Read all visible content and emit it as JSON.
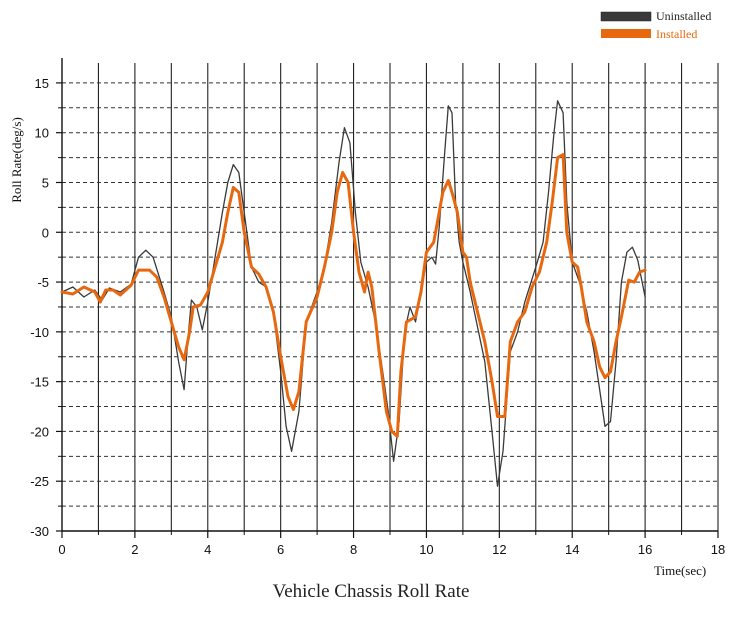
{
  "chart_data": {
    "type": "line",
    "title": "Vehicle Chassis Roll Rate",
    "xlabel": "Time(sec)",
    "ylabel": "Roll Rate(deg/s)",
    "xlim": [
      0,
      18
    ],
    "ylim": [
      -30,
      17
    ],
    "x_ticks": [
      0,
      2,
      4,
      6,
      8,
      10,
      12,
      14,
      16,
      18
    ],
    "y_ticks": [
      -30,
      -25,
      -20,
      -15,
      -10,
      -5,
      0,
      5,
      10,
      15
    ],
    "grid": true,
    "legend_position": "top-right",
    "series": [
      {
        "name": "Uninstalled",
        "color": "#3a3a3a",
        "points": [
          [
            0,
            -6
          ],
          [
            0.3,
            -5.5
          ],
          [
            0.6,
            -6.5
          ],
          [
            0.9,
            -5.8
          ],
          [
            1.1,
            -6.8
          ],
          [
            1.3,
            -5.6
          ],
          [
            1.6,
            -6
          ],
          [
            1.9,
            -5.2
          ],
          [
            2.1,
            -2.5
          ],
          [
            2.3,
            -1.8
          ],
          [
            2.5,
            -2.5
          ],
          [
            2.8,
            -6
          ],
          [
            3.0,
            -8.5
          ],
          [
            3.2,
            -13
          ],
          [
            3.35,
            -15.8
          ],
          [
            3.45,
            -11
          ],
          [
            3.55,
            -6.8
          ],
          [
            3.7,
            -7.5
          ],
          [
            3.85,
            -9.8
          ],
          [
            4.0,
            -7
          ],
          [
            4.2,
            -2.5
          ],
          [
            4.4,
            2
          ],
          [
            4.55,
            5
          ],
          [
            4.7,
            6.8
          ],
          [
            4.85,
            6
          ],
          [
            5.0,
            2
          ],
          [
            5.2,
            -3.5
          ],
          [
            5.4,
            -5
          ],
          [
            5.6,
            -5.5
          ],
          [
            5.8,
            -8
          ],
          [
            6.0,
            -14
          ],
          [
            6.15,
            -19.5
          ],
          [
            6.3,
            -22
          ],
          [
            6.5,
            -18
          ],
          [
            6.7,
            -9
          ],
          [
            7.0,
            -6
          ],
          [
            7.2,
            -3.5
          ],
          [
            7.4,
            1
          ],
          [
            7.6,
            7
          ],
          [
            7.75,
            10.5
          ],
          [
            7.9,
            9
          ],
          [
            8.05,
            2
          ],
          [
            8.2,
            -3
          ],
          [
            8.4,
            -5.5
          ],
          [
            8.6,
            -9
          ],
          [
            8.8,
            -14
          ],
          [
            8.95,
            -18
          ],
          [
            9.1,
            -23
          ],
          [
            9.25,
            -19
          ],
          [
            9.4,
            -10
          ],
          [
            9.55,
            -7.5
          ],
          [
            9.7,
            -9
          ],
          [
            9.85,
            -6
          ],
          [
            10.0,
            -3
          ],
          [
            10.15,
            -2.5
          ],
          [
            10.25,
            -3.2
          ],
          [
            10.35,
            0.5
          ],
          [
            10.5,
            8
          ],
          [
            10.6,
            12.7
          ],
          [
            10.7,
            12
          ],
          [
            10.8,
            3
          ],
          [
            10.9,
            -1
          ],
          [
            11.0,
            -3
          ],
          [
            11.2,
            -6
          ],
          [
            11.4,
            -9.5
          ],
          [
            11.6,
            -13
          ],
          [
            11.8,
            -20
          ],
          [
            11.95,
            -25.5
          ],
          [
            12.1,
            -22
          ],
          [
            12.3,
            -12
          ],
          [
            12.5,
            -10
          ],
          [
            12.7,
            -7
          ],
          [
            13.0,
            -3.5
          ],
          [
            13.2,
            -1
          ],
          [
            13.35,
            4
          ],
          [
            13.5,
            10
          ],
          [
            13.6,
            13.2
          ],
          [
            13.75,
            12
          ],
          [
            13.85,
            3
          ],
          [
            14.0,
            -3
          ],
          [
            14.2,
            -5
          ],
          [
            14.4,
            -8
          ],
          [
            14.6,
            -12
          ],
          [
            14.8,
            -17
          ],
          [
            14.9,
            -19.5
          ],
          [
            15.05,
            -19
          ],
          [
            15.2,
            -13
          ],
          [
            15.35,
            -5
          ],
          [
            15.5,
            -2
          ],
          [
            15.65,
            -1.5
          ],
          [
            15.8,
            -2.8
          ],
          [
            16.0,
            -6.5
          ]
        ]
      },
      {
        "name": "Installed",
        "color": "#e8680f",
        "points": [
          [
            0,
            -6
          ],
          [
            0.3,
            -6.2
          ],
          [
            0.6,
            -5.5
          ],
          [
            0.9,
            -6
          ],
          [
            1.05,
            -7
          ],
          [
            1.2,
            -5.8
          ],
          [
            1.4,
            -5.8
          ],
          [
            1.6,
            -6.3
          ],
          [
            1.9,
            -5.3
          ],
          [
            2.1,
            -3.8
          ],
          [
            2.4,
            -3.8
          ],
          [
            2.6,
            -4.5
          ],
          [
            2.8,
            -6.5
          ],
          [
            3.0,
            -9
          ],
          [
            3.2,
            -11.5
          ],
          [
            3.35,
            -12.8
          ],
          [
            3.5,
            -10
          ],
          [
            3.6,
            -7.5
          ],
          [
            3.8,
            -7.3
          ],
          [
            4.0,
            -6
          ],
          [
            4.2,
            -3.5
          ],
          [
            4.4,
            -1
          ],
          [
            4.55,
            2
          ],
          [
            4.7,
            4.5
          ],
          [
            4.85,
            4
          ],
          [
            5.0,
            0
          ],
          [
            5.2,
            -3.5
          ],
          [
            5.4,
            -4.2
          ],
          [
            5.6,
            -5.5
          ],
          [
            5.8,
            -8
          ],
          [
            6.0,
            -12.5
          ],
          [
            6.2,
            -16.5
          ],
          [
            6.35,
            -17.8
          ],
          [
            6.5,
            -16
          ],
          [
            6.7,
            -9
          ],
          [
            7.0,
            -6.5
          ],
          [
            7.2,
            -3.5
          ],
          [
            7.4,
            0
          ],
          [
            7.55,
            4
          ],
          [
            7.7,
            6
          ],
          [
            7.85,
            5
          ],
          [
            8.0,
            0
          ],
          [
            8.15,
            -4
          ],
          [
            8.3,
            -6
          ],
          [
            8.4,
            -4
          ],
          [
            8.5,
            -5.5
          ],
          [
            8.7,
            -12
          ],
          [
            8.9,
            -18
          ],
          [
            9.05,
            -20
          ],
          [
            9.2,
            -20.5
          ],
          [
            9.3,
            -14
          ],
          [
            9.45,
            -9
          ],
          [
            9.7,
            -8.5
          ],
          [
            9.85,
            -6
          ],
          [
            10.0,
            -2
          ],
          [
            10.2,
            -1
          ],
          [
            10.3,
            1
          ],
          [
            10.45,
            4
          ],
          [
            10.6,
            5.2
          ],
          [
            10.7,
            4
          ],
          [
            10.85,
            2
          ],
          [
            11.0,
            -2
          ],
          [
            11.1,
            -2.5
          ],
          [
            11.2,
            -5
          ],
          [
            11.4,
            -8
          ],
          [
            11.6,
            -11
          ],
          [
            11.8,
            -15
          ],
          [
            11.95,
            -18.5
          ],
          [
            12.15,
            -18.5
          ],
          [
            12.3,
            -11
          ],
          [
            12.5,
            -9
          ],
          [
            12.7,
            -8
          ],
          [
            12.9,
            -5.5
          ],
          [
            13.1,
            -4
          ],
          [
            13.3,
            -1
          ],
          [
            13.45,
            3
          ],
          [
            13.6,
            7.5
          ],
          [
            13.75,
            7.8
          ],
          [
            13.85,
            0
          ],
          [
            14.0,
            -3
          ],
          [
            14.15,
            -3.5
          ],
          [
            14.25,
            -5.5
          ],
          [
            14.4,
            -9
          ],
          [
            14.6,
            -11
          ],
          [
            14.75,
            -13.5
          ],
          [
            14.9,
            -14.6
          ],
          [
            15.05,
            -14
          ],
          [
            15.2,
            -11
          ],
          [
            15.35,
            -8.5
          ],
          [
            15.55,
            -4.8
          ],
          [
            15.7,
            -5
          ],
          [
            15.85,
            -4
          ],
          [
            16.0,
            -3.8
          ]
        ]
      }
    ]
  }
}
